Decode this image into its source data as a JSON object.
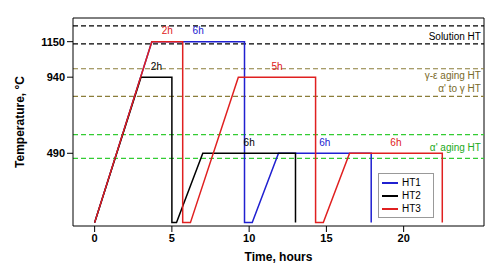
{
  "chart_data": {
    "type": "line",
    "x_label": "Time, hours",
    "y_label": "Temperature, °C",
    "xlim": [
      -1.4,
      25.2
    ],
    "xticks": [
      0,
      5,
      10,
      15,
      20
    ],
    "ylim": [
      60,
      1290
    ],
    "yticks": [
      490,
      940,
      1150
    ],
    "legend": "lower right",
    "series": [
      {
        "name": "HT1",
        "color": "#2020d0",
        "x": [
          0,
          3.7,
          9.7,
          9.7,
          10.2,
          11.9,
          17.9,
          17.9
        ],
        "values": [
          80,
          1150,
          1150,
          80,
          80,
          490,
          490,
          80
        ]
      },
      {
        "name": "HT2",
        "color": "#000000",
        "x": [
          0,
          3.0,
          5.0,
          5.0,
          5.3,
          7.0,
          13.0,
          13.0
        ],
        "values": [
          80,
          940,
          940,
          80,
          80,
          490,
          490,
          80
        ]
      },
      {
        "name": "HT3",
        "color": "#e02020",
        "x": [
          0,
          3.7,
          5.7,
          5.7,
          6.2,
          9.3,
          14.3,
          14.3,
          14.8,
          16.5,
          22.5,
          22.5
        ],
        "values": [
          80,
          1150,
          1150,
          80,
          80,
          940,
          940,
          80,
          80,
          490,
          490,
          80
        ]
      }
    ],
    "reference_lines": [
      {
        "y": 1243,
        "color": "#000000",
        "line_style": "dashed"
      },
      {
        "y": 1137,
        "color": "#000000",
        "line_style": "dashed"
      },
      {
        "y": 990,
        "color": "#8b7d3a",
        "line_style": "dashed"
      },
      {
        "y": 826,
        "color": "#8b7d3a",
        "line_style": "dashed"
      },
      {
        "y": 600,
        "color": "#33cc33",
        "line_style": "dashed"
      },
      {
        "y": 460,
        "color": "#33cc33",
        "line_style": "dashed"
      }
    ],
    "annotations": [
      {
        "text": "2h",
        "x": 4.0,
        "y": 985,
        "color": "#000000"
      },
      {
        "text": "2h",
        "x": 4.7,
        "y": 1195,
        "color": "#e02020"
      },
      {
        "text": "6h",
        "x": 6.7,
        "y": 1195,
        "color": "#2020d0"
      },
      {
        "text": "6h",
        "x": 10.0,
        "y": 535,
        "color": "#000000"
      },
      {
        "text": "5h",
        "x": 11.8,
        "y": 985,
        "color": "#e02020"
      },
      {
        "text": "6h",
        "x": 14.9,
        "y": 535,
        "color": "#2020d0"
      },
      {
        "text": "6h",
        "x": 19.5,
        "y": 535,
        "color": "#e02020"
      }
    ],
    "region_labels": [
      {
        "text": "Solution HT",
        "x": 25,
        "y": 1160,
        "color": "#000000"
      },
      {
        "text": "γ-ε aging HT",
        "x": 25,
        "y": 930,
        "color": "#7a6a2a"
      },
      {
        "text": "α' to γ HT",
        "x": 25,
        "y": 850,
        "color": "#7a6a2a"
      },
      {
        "text": "α' aging HT",
        "x": 25,
        "y": 505,
        "color": "#22aa22"
      }
    ]
  }
}
